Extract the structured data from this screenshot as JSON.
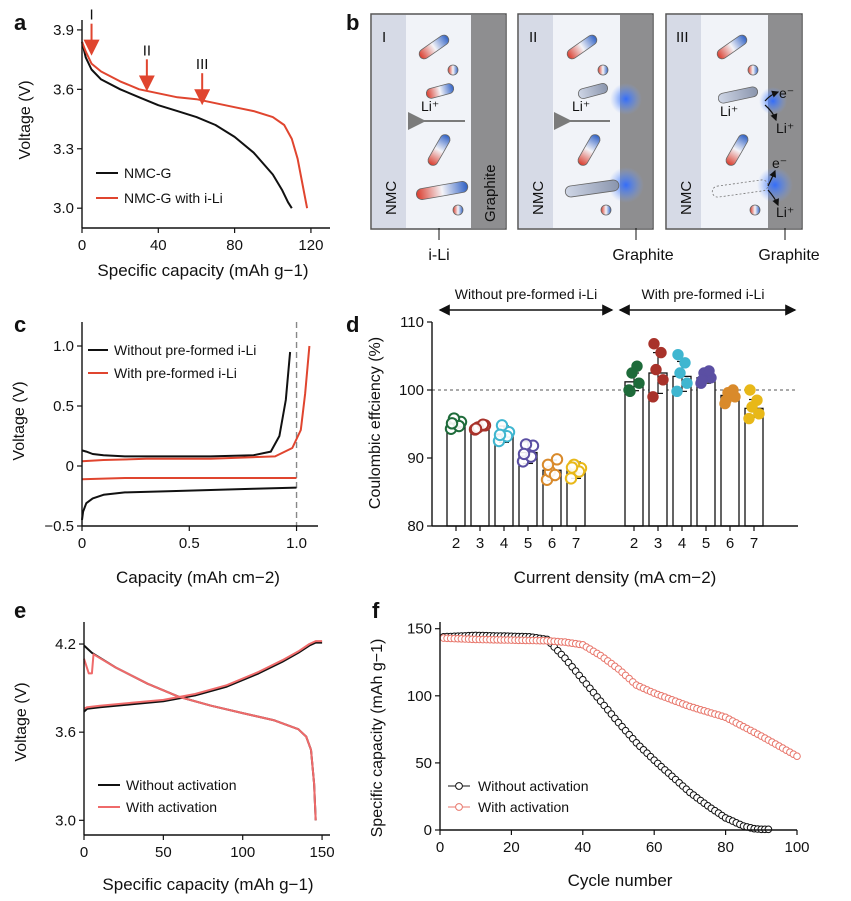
{
  "panels": {
    "a": {
      "label": "a",
      "chart_type": "line",
      "xlabel": "Specific capacity (mAh g−1)",
      "ylabel": "Voltage (V)",
      "xlim": [
        0,
        130
      ],
      "ylim": [
        2.9,
        3.95
      ],
      "xticks": [
        "0",
        "40",
        "80",
        "120"
      ],
      "xtick_values": [
        0,
        40,
        80,
        120
      ],
      "yticks": [
        "3.0",
        "3.3",
        "3.6",
        "3.9"
      ],
      "ytick_values": [
        3.0,
        3.3,
        3.6,
        3.9
      ],
      "legend": [
        "NMC-G",
        "NMC-G with i-Li"
      ],
      "markers": [
        {
          "label": "I",
          "x": 5,
          "y": 3.78
        },
        {
          "label": "II",
          "x": 34,
          "y": 3.6
        },
        {
          "label": "III",
          "x": 63,
          "y": 3.53
        }
      ],
      "series": [
        {
          "name": "NMC-G",
          "color": "#111111",
          "x": [
            0,
            2,
            5,
            10,
            20,
            30,
            40,
            50,
            60,
            70,
            80,
            90,
            100,
            105,
            108,
            110
          ],
          "y": [
            3.84,
            3.76,
            3.7,
            3.65,
            3.6,
            3.56,
            3.52,
            3.49,
            3.46,
            3.42,
            3.36,
            3.28,
            3.17,
            3.09,
            3.03,
            3.0
          ]
        },
        {
          "name": "NMC-G with i-Li",
          "color": "#e0452f",
          "x": [
            0,
            2,
            5,
            10,
            20,
            30,
            40,
            50,
            60,
            70,
            80,
            90,
            100,
            106,
            110,
            113,
            115,
            117,
            118
          ],
          "y": [
            3.84,
            3.79,
            3.73,
            3.69,
            3.64,
            3.6,
            3.58,
            3.56,
            3.55,
            3.53,
            3.51,
            3.49,
            3.46,
            3.42,
            3.35,
            3.25,
            3.15,
            3.05,
            3.0
          ]
        }
      ]
    },
    "b": {
      "label": "b",
      "stages": [
        {
          "numeral": "I",
          "left": "NMC",
          "right": "Graphite",
          "ion": "Li⁺",
          "caption": "i-Li"
        },
        {
          "numeral": "II",
          "left": "NMC",
          "ion": "Li⁺",
          "caption": "Graphite"
        },
        {
          "numeral": "III",
          "left": "NMC",
          "ion": "Li⁺",
          "electron": "e⁻",
          "li_out": "Li⁺",
          "caption": "Graphite"
        }
      ]
    },
    "c": {
      "label": "c",
      "chart_type": "line",
      "xlabel": "Capacity (mAh cm−2)",
      "ylabel": "Voltage (V)",
      "xlim": [
        0,
        1.1
      ],
      "ylim": [
        -0.5,
        1.2
      ],
      "xticks": [
        "0",
        "0.5",
        "1.0"
      ],
      "xtick_values": [
        0,
        0.5,
        1.0
      ],
      "yticks": [
        "−0.5",
        "0",
        "0.5",
        "1.0"
      ],
      "ytick_values": [
        -0.5,
        0,
        0.5,
        1.0
      ],
      "dashed_x": 1.0,
      "legend": [
        "Without pre-formed i-Li",
        "With pre-formed i-Li"
      ],
      "series": [
        {
          "name": "Without pre-formed i-Li (charge)",
          "color": "#111111",
          "x": [
            0,
            0.02,
            0.05,
            0.1,
            0.2,
            0.4,
            0.6,
            0.8,
            0.88,
            0.92,
            0.95,
            0.97
          ],
          "y": [
            0.13,
            0.12,
            0.1,
            0.09,
            0.08,
            0.08,
            0.08,
            0.09,
            0.12,
            0.25,
            0.55,
            0.95
          ]
        },
        {
          "name": "Without pre-formed i-Li (discharge)",
          "color": "#111111",
          "x": [
            0,
            0.005,
            0.02,
            0.05,
            0.1,
            0.2,
            0.4,
            0.6,
            0.8,
            1.0
          ],
          "y": [
            -0.45,
            -0.38,
            -0.31,
            -0.27,
            -0.24,
            -0.22,
            -0.21,
            -0.2,
            -0.19,
            -0.18
          ]
        },
        {
          "name": "With pre-formed i-Li (charge)",
          "color": "#e0452f",
          "x": [
            0,
            0.1,
            0.3,
            0.6,
            0.9,
            0.98,
            1.02,
            1.04,
            1.06
          ],
          "y": [
            0.04,
            0.05,
            0.06,
            0.06,
            0.08,
            0.15,
            0.3,
            0.6,
            1.0
          ]
        },
        {
          "name": "With pre-formed i-Li (discharge)",
          "color": "#e0452f",
          "x": [
            0,
            0.2,
            0.5,
            0.8,
            1.0
          ],
          "y": [
            -0.11,
            -0.1,
            -0.1,
            -0.1,
            -0.1
          ]
        }
      ]
    },
    "d": {
      "label": "d",
      "chart_type": "bar",
      "xlabel": "Current density (mA cm−2)",
      "ylabel": "Coulombic effciency (%)",
      "ylim": [
        80,
        110
      ],
      "yticks": [
        "80",
        "90",
        "100",
        "110"
      ],
      "ytick_values": [
        80,
        90,
        100,
        110
      ],
      "reference_line": 100,
      "group_labels": [
        "Without pre-formed i-Li",
        "With pre-formed i-Li"
      ],
      "categories": [
        "2",
        "3",
        "4",
        "5",
        "6",
        "7"
      ],
      "dot_colors": [
        "#1e6b3a",
        "#a8322a",
        "#3fb6d0",
        "#5b4fa3",
        "#d98a2b",
        "#e8b818"
      ],
      "series": [
        {
          "name": "Without pre-formed i-Li",
          "filled": false,
          "values": [
            95.0,
            94.5,
            93.5,
            90.8,
            88.2,
            88.2
          ],
          "errors": [
            0.6,
            0.5,
            1.2,
            1.6,
            1.5,
            1.2
          ],
          "points": [
            [
              94.3,
              95.3,
              95.8,
              94.7,
              95.1
            ],
            [
              94.2,
              94.8,
              94.5,
              94.9,
              94.3
            ],
            [
              92.5,
              93.8,
              94.8,
              93.2,
              93.4
            ],
            [
              89.5,
              91.8,
              92.0,
              90.2,
              90.6
            ],
            [
              86.8,
              89.8,
              88.0,
              87.5,
              89.0
            ],
            [
              87.0,
              88.5,
              89.0,
              88.0,
              88.6
            ]
          ]
        },
        {
          "name": "With pre-formed i-Li",
          "filled": true,
          "values": [
            101.2,
            102.5,
            102.0,
            101.8,
            99.2,
            97.3
          ],
          "errors": [
            1.3,
            3.0,
            2.2,
            0.8,
            0.8,
            1.3
          ],
          "points": [
            [
              100.0,
              101.0,
              102.5,
              103.5,
              99.8
            ],
            [
              99.0,
              101.5,
              103.0,
              105.5,
              106.8
            ],
            [
              99.8,
              101.0,
              102.5,
              104.0,
              105.2
            ],
            [
              101.0,
              101.8,
              102.5,
              102.8,
              101.4
            ],
            [
              98.0,
              99.0,
              99.6,
              100.0,
              98.5
            ],
            [
              95.8,
              96.5,
              97.5,
              98.5,
              100.0
            ]
          ]
        }
      ]
    },
    "e": {
      "label": "e",
      "chart_type": "line",
      "xlabel": "Specific capacity (mAh g−1)",
      "ylabel": "Voltage (V)",
      "xlim": [
        0,
        155
      ],
      "ylim": [
        2.9,
        4.35
      ],
      "xticks": [
        "0",
        "50",
        "100",
        "150"
      ],
      "xtick_values": [
        0,
        50,
        100,
        150
      ],
      "yticks": [
        "3.0",
        "3.6",
        "4.2"
      ],
      "ytick_values": [
        3.0,
        3.6,
        4.2
      ],
      "legend": [
        "Without activation",
        "With activation"
      ],
      "series": [
        {
          "name": "Without activation (charge)",
          "color": "#111111",
          "x": [
            0,
            2,
            10,
            30,
            50,
            70,
            90,
            110,
            125,
            135,
            142,
            146,
            150
          ],
          "y": [
            3.74,
            3.76,
            3.77,
            3.79,
            3.81,
            3.85,
            3.91,
            4.0,
            4.08,
            4.14,
            4.19,
            4.21,
            4.21
          ]
        },
        {
          "name": "Without activation (discharge)",
          "color": "#111111",
          "x": [
            0,
            5,
            20,
            40,
            60,
            80,
            100,
            120,
            135,
            140,
            143,
            145,
            146
          ],
          "y": [
            4.19,
            4.14,
            4.04,
            3.93,
            3.84,
            3.78,
            3.73,
            3.68,
            3.62,
            3.57,
            3.48,
            3.25,
            3.0
          ]
        },
        {
          "name": "With activation (charge)",
          "color": "#ef6a6a",
          "x": [
            0,
            2,
            10,
            30,
            50,
            70,
            90,
            110,
            125,
            135,
            142,
            146,
            150
          ],
          "y": [
            3.76,
            3.77,
            3.78,
            3.8,
            3.82,
            3.86,
            3.92,
            4.01,
            4.09,
            4.15,
            4.2,
            4.22,
            4.22
          ]
        },
        {
          "name": "With activation (discharge)",
          "color": "#ef6a6a",
          "x": [
            0,
            3,
            5,
            6,
            20,
            40,
            60,
            80,
            100,
            120,
            135,
            140,
            143,
            145,
            146
          ],
          "y": [
            4.1,
            4.0,
            4.0,
            4.13,
            4.04,
            3.93,
            3.84,
            3.78,
            3.73,
            3.68,
            3.62,
            3.57,
            3.48,
            3.25,
            3.0
          ]
        }
      ]
    },
    "f": {
      "label": "f",
      "chart_type": "scatter",
      "xlabel": "Cycle number",
      "ylabel": "Specific capacity (mAh g−1)",
      "xlim": [
        0,
        100
      ],
      "ylim": [
        0,
        155
      ],
      "xticks": [
        "0",
        "20",
        "40",
        "60",
        "80",
        "100"
      ],
      "xtick_values": [
        0,
        20,
        40,
        60,
        80,
        100
      ],
      "yticks": [
        "0",
        "50",
        "100",
        "150"
      ],
      "ytick_values": [
        0,
        50,
        100,
        150
      ],
      "legend": [
        "Without activation",
        "With activation"
      ],
      "series": [
        {
          "name": "Without activation",
          "color": "#111111",
          "cycles": [
            1,
            92
          ],
          "knots_x": [
            1,
            10,
            25,
            30,
            35,
            40,
            45,
            50,
            55,
            60,
            65,
            70,
            75,
            80,
            85,
            88,
            90,
            92
          ],
          "knots_y": [
            144,
            145,
            144,
            142,
            128,
            112,
            96,
            80,
            65,
            52,
            40,
            28,
            18,
            9,
            3,
            1,
            0.5,
            0.5
          ]
        },
        {
          "name": "With activation",
          "color": "#e8776c",
          "cycles": [
            1,
            100
          ],
          "knots_x": [
            1,
            10,
            30,
            35,
            40,
            45,
            50,
            55,
            60,
            70,
            80,
            90,
            100
          ],
          "knots_y": [
            143,
            142,
            141,
            140,
            138,
            130,
            120,
            108,
            102,
            92,
            84,
            70,
            55
          ]
        }
      ]
    }
  }
}
